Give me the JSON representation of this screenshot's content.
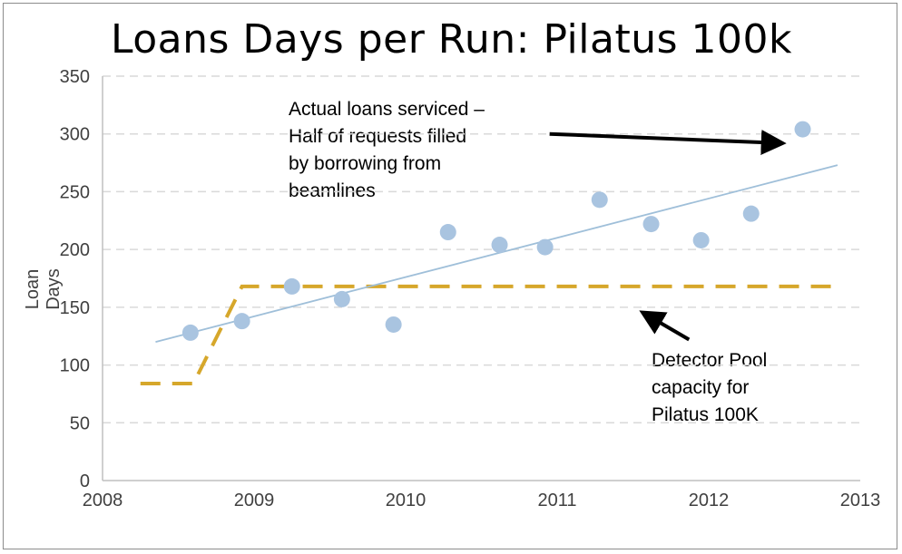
{
  "chart_data": {
    "type": "scatter",
    "title": "Loans Days per Run: Pilatus 100k",
    "xlabel": "",
    "ylabel": "Loan Days",
    "xlim": [
      2008,
      2013
    ],
    "ylim": [
      0,
      350
    ],
    "x_ticks": [
      "2008",
      "2009",
      "2010",
      "2011",
      "2012",
      "2013"
    ],
    "y_ticks": [
      "0",
      "50",
      "100",
      "150",
      "200",
      "250",
      "300",
      "350"
    ],
    "grid": "horizontal dashed",
    "colors": {
      "points": "#a9c4e0",
      "trend": "#9fbfd9",
      "capacity": "#d6a72b",
      "grid": "#d9d9d9"
    },
    "series": [
      {
        "values": [
          {
            "x": 2008.58,
            "y": 128
          },
          {
            "x": 2008.92,
            "y": 138
          },
          {
            "x": 2009.25,
            "y": 168
          },
          {
            "x": 2009.58,
            "y": 157
          },
          {
            "x": 2009.92,
            "y": 135
          },
          {
            "x": 2010.28,
            "y": 215
          },
          {
            "x": 2010.62,
            "y": 204
          },
          {
            "x": 2010.92,
            "y": 202
          },
          {
            "x": 2011.28,
            "y": 243
          },
          {
            "x": 2011.62,
            "y": 222
          },
          {
            "x": 2011.95,
            "y": 208
          },
          {
            "x": 2012.28,
            "y": 231
          },
          {
            "x": 2012.62,
            "y": 304
          }
        ]
      }
    ],
    "trendline": {
      "from": {
        "x": 2008.35,
        "y": 120
      },
      "to": {
        "x": 2012.85,
        "y": 273
      }
    },
    "capacity_line": [
      {
        "x": 2008.25,
        "y": 84
      },
      {
        "x": 2008.6,
        "y": 84
      },
      {
        "x": 2008.92,
        "y": 168
      },
      {
        "x": 2012.85,
        "y": 168
      }
    ],
    "annotations": [
      {
        "lines": [
          "Actual loans serviced –",
          "Half of requests filled",
          "by borrowing from",
          "beamlines"
        ],
        "arrow_from": {
          "x": 2010.95,
          "y": 300
        },
        "arrow_to": {
          "x": 2012.48,
          "y": 292
        }
      },
      {
        "lines": [
          "Detector Pool",
          "capacity for",
          "Pilatus 100K"
        ],
        "arrow_from": {
          "x": 2011.87,
          "y": 122
        },
        "arrow_to": {
          "x": 2011.57,
          "y": 145
        }
      }
    ]
  }
}
